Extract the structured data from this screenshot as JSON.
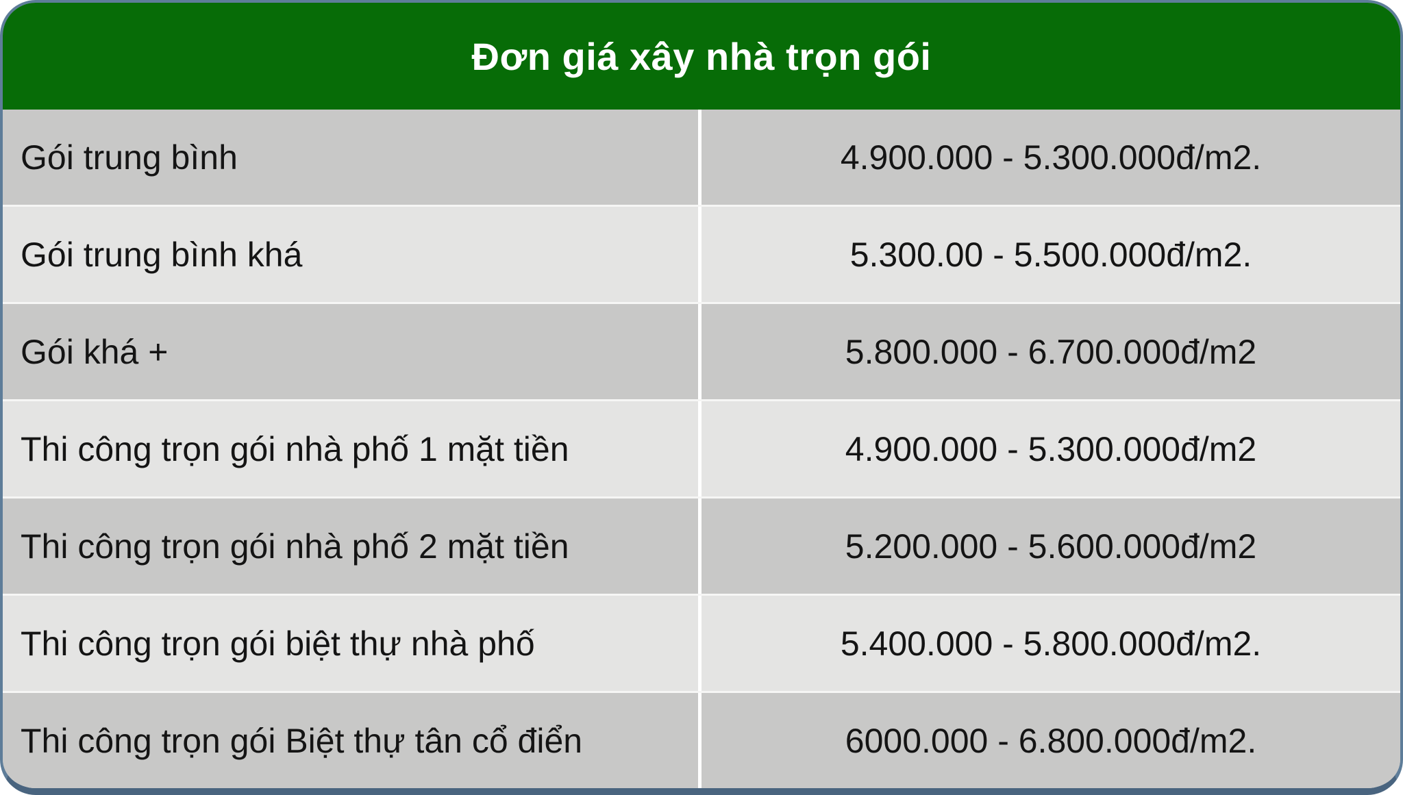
{
  "table": {
    "title": "Đơn giá xây nhà trọn gói",
    "rows": [
      {
        "label": "Gói trung bình",
        "price": "4.900.000 - 5.300.000đ/m2."
      },
      {
        "label": "Gói trung bình khá",
        "price": "5.300.00 - 5.500.000đ/m2."
      },
      {
        "label": "Gói khá +",
        "price": "5.800.000 - 6.700.000đ/m2"
      },
      {
        "label": "Thi công trọn gói nhà phố 1 mặt tiền",
        "price": "4.900.000 - 5.300.000đ/m2"
      },
      {
        "label": "Thi công trọn gói nhà phố 2 mặt tiền",
        "price": "5.200.000 - 5.600.000đ/m2"
      },
      {
        "label": "Thi công trọn gói biệt thự nhà phố",
        "price": "5.400.000 - 5.800.000đ/m2."
      },
      {
        "label": "Thi công trọn gói Biệt thự tân cổ điển",
        "price": "6000.000 - 6.800.000đ/m2."
      }
    ],
    "colors": {
      "header_green": "#076c07",
      "row_dark": "#c8c8c7",
      "row_light": "#e4e4e3",
      "divider_white": "#ffffff",
      "border_slate": "#5e7d99",
      "border_bottom_slate": "#49647f",
      "title_text": "#ffffff",
      "body_text": "#141414"
    }
  },
  "chart_data": {
    "type": "table",
    "title": "Đơn giá xây nhà trọn gói",
    "columns": 2,
    "rows": [
      [
        "Gói trung bình",
        "4.900.000 - 5.300.000đ/m2."
      ],
      [
        "Gói trung bình khá",
        "5.300.00 - 5.500.000đ/m2."
      ],
      [
        "Gói khá +",
        "5.800.000 - 6.700.000đ/m2"
      ],
      [
        "Thi công trọn gói nhà phố 1 mặt tiền",
        "4.900.000 - 5.300.000đ/m2"
      ],
      [
        "Thi công trọn gói nhà phố 2 mặt tiền",
        "5.200.000 - 5.600.000đ/m2"
      ],
      [
        "Thi công trọn gói biệt thự nhà phố",
        "5.400.000 - 5.800.000đ/m2."
      ],
      [
        "Thi công trọn gói Biệt thự tân cổ điển",
        "6000.000 - 6.800.000đ/m2."
      ]
    ]
  }
}
